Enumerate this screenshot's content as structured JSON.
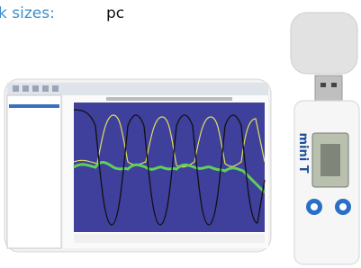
{
  "header": {
    "label": "k sizes:",
    "value": "pc"
  },
  "device": {
    "brand": "mini T"
  }
}
